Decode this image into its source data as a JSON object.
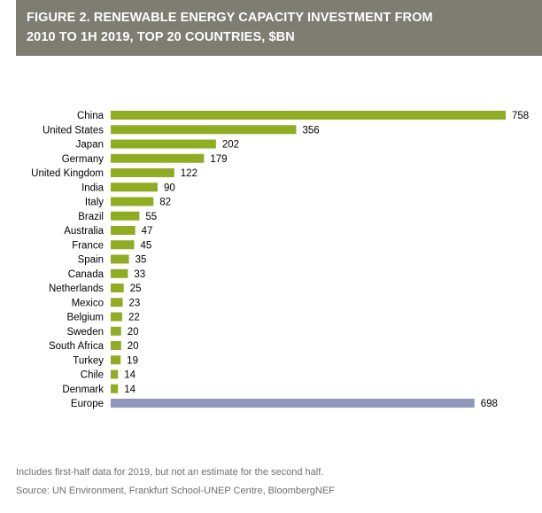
{
  "header": {
    "title_line1": "FIGURE 2. RENEWABLE ENERGY CAPACITY INVESTMENT FROM",
    "title_line2": "2010 TO 1H 2019, TOP 20 COUNTRIES, $BN"
  },
  "chart_data": {
    "type": "bar",
    "orientation": "horizontal",
    "categories": [
      "China",
      "United States",
      "Japan",
      "Germany",
      "United Kingdom",
      "India",
      "Italy",
      "Brazil",
      "Australia",
      "France",
      "Spain",
      "Canada",
      "Netherlands",
      "Mexico",
      "Belgium",
      "Sweden",
      "South Africa",
      "Turkey",
      "Chile",
      "Denmark",
      "Europe"
    ],
    "values": [
      758,
      356,
      202,
      179,
      122,
      90,
      82,
      55,
      47,
      45,
      35,
      33,
      25,
      23,
      22,
      20,
      20,
      19,
      14,
      14,
      698
    ],
    "value_labels": [
      "758",
      "356",
      "202",
      "179",
      "122",
      "90",
      "82",
      "55",
      "47",
      "45",
      "35",
      "33",
      "25",
      "23",
      "22",
      "20",
      "20",
      "19",
      "14",
      "14",
      "698"
    ],
    "bar_colors": [
      "#8fac23",
      "#8fac23",
      "#8fac23",
      "#8fac23",
      "#8fac23",
      "#8fac23",
      "#8fac23",
      "#8fac23",
      "#8fac23",
      "#8fac23",
      "#8fac23",
      "#8fac23",
      "#8fac23",
      "#8fac23",
      "#8fac23",
      "#8fac23",
      "#8fac23",
      "#8fac23",
      "#8fac23",
      "#8fac23",
      "#8e97bb"
    ],
    "xlim": [
      0,
      758
    ],
    "grid": false,
    "legend": "none"
  },
  "notes": {
    "line1": "Includes first-half data for 2019, but not an estimate for the second half.",
    "line2": "Source: UN Environment, Frankfurt School-UNEP Centre, BloombergNEF"
  },
  "colors": {
    "header_bg": "#7d7d72",
    "country_bar": "#8fac23",
    "europe_bar": "#8e97bb",
    "note_text": "#6f6f6f"
  }
}
